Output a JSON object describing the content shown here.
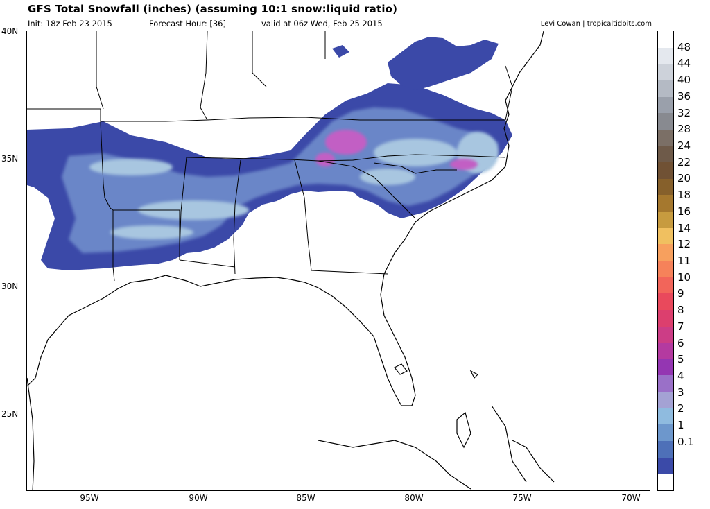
{
  "header": {
    "title": "GFS Total Snowfall (inches) (assuming 10:1 snow:liquid ratio)",
    "init": "Init: 18z Feb 23 2015",
    "forecast_hour": "Forecast Hour: [36]",
    "valid": "valid at 06z Wed, Feb 25 2015",
    "credit": "Levi Cowan | tropicaltidbits.com"
  },
  "map": {
    "lat_labels": [
      "40N",
      "35N",
      "30N",
      "25N"
    ],
    "lon_labels": [
      "95W",
      "90W",
      "85W",
      "80W",
      "75W",
      "70W"
    ],
    "colors": {
      "ocean": "#ffffff",
      "coastline": "#000000",
      "snow_light": "#3b49a8",
      "snow_mid": "#6b86c8",
      "snow_heavy": "#a8c6e0",
      "snow_max": "#c25fc4"
    }
  },
  "legend": {
    "labels": [
      "48",
      "44",
      "40",
      "36",
      "32",
      "28",
      "24",
      "22",
      "20",
      "18",
      "16",
      "14",
      "12",
      "11",
      "10",
      "9",
      "8",
      "7",
      "6",
      "5",
      "4",
      "3",
      "2",
      "1",
      "0.1"
    ],
    "colors": [
      "#ffffff",
      "#e4e8ee",
      "#cdd2da",
      "#b4bac4",
      "#9aa0ab",
      "#888a90",
      "#7b6f66",
      "#6e5a49",
      "#705134",
      "#86602b",
      "#a5782e",
      "#c79b3f",
      "#f0c060",
      "#f7a05e",
      "#f6825a",
      "#f2655a",
      "#e9495c",
      "#dc3f6e",
      "#cc3d86",
      "#b43aa0",
      "#9436b2",
      "#9a70c8",
      "#a4a2d4",
      "#8fbbdf",
      "#6d97cc",
      "#4e70b8",
      "#3b4aa8",
      "#ffffff"
    ]
  }
}
